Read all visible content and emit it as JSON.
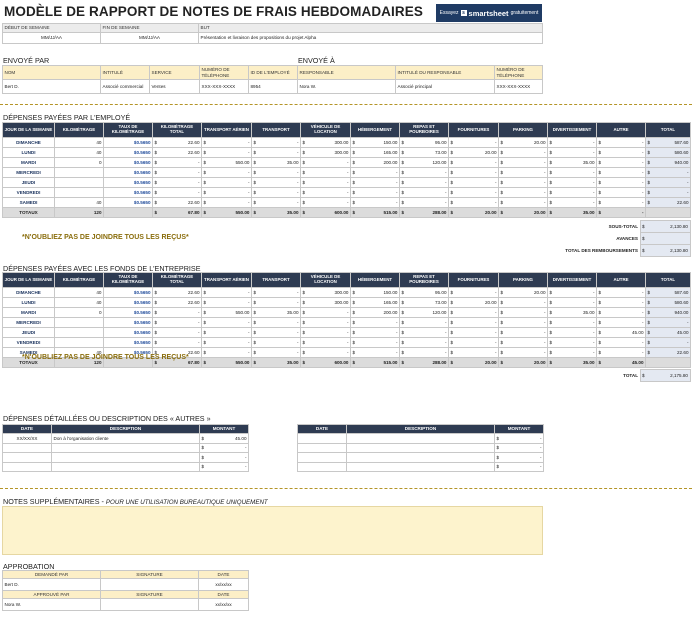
{
  "title": "MODÈLE DE RAPPORT DE NOTES DE FRAIS HEBDOMADAIRES",
  "banner": {
    "prefix": "Essayez",
    "brand": "smartsheet",
    "suffix": "gratuitement",
    "mark": "s"
  },
  "week": {
    "headers": [
      "DÉBUT DE SEMAINE",
      "FIN DE SEMAINE",
      "BUT"
    ],
    "start": "MM/JJ/AA",
    "end": "MM/JJ/AA",
    "purpose": "Présentation et livraison des propositions du projet Alpha"
  },
  "sent_by": {
    "label": "ENVOYÉ PAR",
    "headers": [
      "NOM",
      "INTITULÉ",
      "SERVICE",
      "NUMÉRO DE TÉLÉPHONE",
      "ID DE L'EMPLOYÉ"
    ],
    "values": [
      "Bert D.",
      "Associé commercial",
      "Ventes",
      "XXX-XXX-XXXX",
      "8954"
    ]
  },
  "sent_to": {
    "label": "ENVOYÉ À",
    "headers": [
      "RESPONSABLE",
      "INTITULÉ DU RESPONSABLE",
      "NUMÉRO DE TÉLÉPHONE"
    ],
    "values": [
      "Nora W.",
      "Associé principal",
      "XXX-XXX-XXXX"
    ]
  },
  "expense_headers": [
    "JOUR DE LA SEMAINE",
    "KILOMÉTRAGE",
    "TAUX DE KILOMÉTRAGE",
    "KILOMÉTRAGE TOTAL",
    "TRANSPORT AÉRIEN",
    "TRANSPORT",
    "VÉHICULE DE LOCATION",
    "HÉBERGEMENT",
    "REPAS ET POURBOIRES",
    "FOURNITURES",
    "PARKING",
    "DIVERTISSEMENT",
    "AUTRE",
    "TOTAL"
  ],
  "employee": {
    "label": "DÉPENSES PAYÉES PAR L'EMPLOYÉ",
    "rows": [
      [
        "DIMANCHE",
        "40",
        "$0.5650",
        "22.60",
        "-",
        "-",
        "300.00",
        "150.00",
        "95.00",
        "-",
        "20.00",
        "-",
        "-",
        "587.60"
      ],
      [
        "LUNDI",
        "40",
        "$0.5650",
        "22.60",
        "-",
        "-",
        "300.00",
        "165.00",
        "73.00",
        "20.00",
        "-",
        "-",
        "-",
        "580.60"
      ],
      [
        "MARDI",
        "0",
        "$0.5650",
        "-",
        "550.00",
        "35.00",
        "-",
        "200.00",
        "120.00",
        "-",
        "-",
        "35.00",
        "-",
        "940.00"
      ],
      [
        "MERCREDI",
        "",
        "$0.5650",
        "-",
        "-",
        "-",
        "-",
        "-",
        "-",
        "-",
        "-",
        "-",
        "-",
        "-"
      ],
      [
        "JEUDI",
        "",
        "$0.5650",
        "-",
        "-",
        "-",
        "-",
        "-",
        "-",
        "-",
        "-",
        "-",
        "-",
        "-"
      ],
      [
        "VENDREDI",
        "",
        "$0.5650",
        "-",
        "-",
        "-",
        "-",
        "-",
        "-",
        "-",
        "-",
        "-",
        "-",
        "-"
      ],
      [
        "SAMEDI",
        "40",
        "$0.5650",
        "22.60",
        "-",
        "-",
        "-",
        "-",
        "-",
        "-",
        "-",
        "-",
        "-",
        "22.60"
      ]
    ],
    "totals": [
      "TOTAUX",
      "120",
      "",
      "67.80",
      "550.00",
      "35.00",
      "600.00",
      "515.00",
      "288.00",
      "20.00",
      "20.00",
      "35.00",
      "-",
      ""
    ],
    "summary": [
      [
        "SOUS-TOTAL",
        "2,130.80"
      ],
      [
        "AVANCES",
        ""
      ],
      [
        "TOTAL DES REMBOURSEMENTS",
        "2,130.80"
      ]
    ]
  },
  "company": {
    "label": "DÉPENSES PAYÉES AVEC LES FONDS DE L'ENTREPRISE",
    "rows": [
      [
        "DIMANCHE",
        "40",
        "$0.5650",
        "22.60",
        "-",
        "-",
        "300.00",
        "150.00",
        "95.00",
        "-",
        "20.00",
        "-",
        "-",
        "587.60"
      ],
      [
        "LUNDI",
        "40",
        "$0.5650",
        "22.60",
        "-",
        "-",
        "300.00",
        "165.00",
        "73.00",
        "20.00",
        "-",
        "-",
        "-",
        "580.60"
      ],
      [
        "MARDI",
        "0",
        "$0.5650",
        "-",
        "550.00",
        "35.00",
        "-",
        "200.00",
        "120.00",
        "-",
        "-",
        "35.00",
        "-",
        "940.00"
      ],
      [
        "MERCREDI",
        "",
        "$0.5650",
        "-",
        "-",
        "-",
        "-",
        "-",
        "-",
        "-",
        "-",
        "-",
        "-",
        "-"
      ],
      [
        "JEUDI",
        "",
        "$0.5650",
        "-",
        "-",
        "-",
        "-",
        "-",
        "-",
        "-",
        "-",
        "-",
        "45.00",
        "45.00"
      ],
      [
        "VENDREDI",
        "",
        "$0.5650",
        "-",
        "-",
        "-",
        "-",
        "-",
        "-",
        "-",
        "-",
        "-",
        "-",
        "-"
      ],
      [
        "SAMEDI",
        "40",
        "$0.5650",
        "22.60",
        "-",
        "-",
        "-",
        "-",
        "-",
        "-",
        "-",
        "-",
        "-",
        "22.60"
      ]
    ],
    "totals": [
      "TOTAUX",
      "120",
      "",
      "67.80",
      "550.00",
      "35.00",
      "600.00",
      "515.00",
      "288.00",
      "20.00",
      "20.00",
      "35.00",
      "45.00",
      ""
    ],
    "summary": [
      [
        "TOTAL",
        "2,175.80"
      ]
    ]
  },
  "reminder": "*N'OUBLIEZ PAS DE JOINDRE TOUS LES REÇUS*",
  "other": {
    "label": "DÉPENSES DÉTAILLÉES OU DESCRIPTION DES « AUTRES »",
    "headers": [
      "DATE",
      "DESCRIPTION",
      "MONTANT"
    ],
    "left_rows": [
      [
        "XX/XX/XX",
        "Don à l'organisation cliente",
        "45.00"
      ],
      [
        "",
        "",
        "-"
      ],
      [
        "",
        "",
        "-"
      ],
      [
        "",
        "",
        "-"
      ]
    ],
    "right_rows": [
      [
        "",
        "",
        "-"
      ],
      [
        "",
        "",
        "-"
      ],
      [
        "",
        "",
        "-"
      ],
      [
        "",
        "",
        "-"
      ]
    ],
    "currency": "$"
  },
  "notes": {
    "label": "NOTES SUPPLÉMENTAIRES - ",
    "sub": "POUR UNE UTILISATION BUREAUTIQUE UNIQUEMENT"
  },
  "approval": {
    "label": "APPROBATION",
    "rows": [
      {
        "h": [
          "DEMANDÉ PAR",
          "SIGNATURE",
          "DATE"
        ],
        "v": [
          "Bert D.",
          "",
          "xx/xx/xx"
        ]
      },
      {
        "h": [
          "APPROUVÉ PAR",
          "SIGNATURE",
          "DATE"
        ],
        "v": [
          "Nora W.",
          "",
          "xx/xx/xx"
        ]
      }
    ]
  }
}
